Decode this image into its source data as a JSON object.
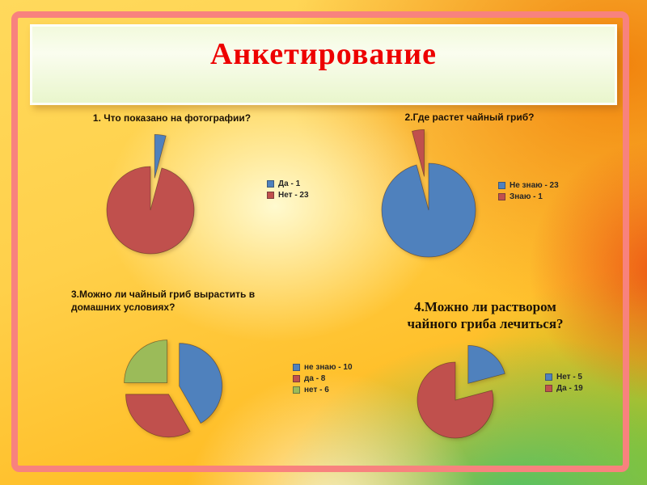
{
  "slide": {
    "title": "Анкетирование",
    "title_color": "#ED0000",
    "frame_color": "#F8827E",
    "pie_palette": {
      "blue": "#4F81BD",
      "red": "#C0504D",
      "green": "#9BBB59"
    }
  },
  "chart_data": [
    {
      "type": "pie",
      "title": "1. Что показано на фотографии?",
      "legend_position": "right",
      "slices": [
        {
          "label": "Да - 1",
          "value": 1,
          "color": "#4F81BD",
          "exploded": true
        },
        {
          "label": "Нет - 23",
          "value": 23,
          "color": "#C0504D",
          "exploded": false
        }
      ]
    },
    {
      "type": "pie",
      "title": "2.Где растет чайный гриб?",
      "legend_position": "right",
      "slices": [
        {
          "label": "Не знаю - 23",
          "value": 23,
          "color": "#4F81BD",
          "exploded": false
        },
        {
          "label": "Знаю - 1",
          "value": 1,
          "color": "#C0504D",
          "exploded": true
        }
      ]
    },
    {
      "type": "pie",
      "title": "3.Можно ли чайный гриб вырастить в домашних условиях?",
      "legend_position": "right",
      "slices": [
        {
          "label": "не знаю - 10",
          "value": 10,
          "color": "#4F81BD",
          "exploded": true
        },
        {
          "label": "да - 8",
          "value": 8,
          "color": "#C0504D",
          "exploded": true
        },
        {
          "label": "нет - 6",
          "value": 6,
          "color": "#9BBB59",
          "exploded": true
        }
      ]
    },
    {
      "type": "pie",
      "title": "4.Можно ли раствором чайного гриба лечиться?",
      "legend_position": "right",
      "slices": [
        {
          "label": "Нет - 5",
          "value": 5,
          "color": "#4F81BD",
          "exploded": true
        },
        {
          "label": "Да - 19",
          "value": 19,
          "color": "#C0504D",
          "exploded": false
        }
      ]
    }
  ]
}
